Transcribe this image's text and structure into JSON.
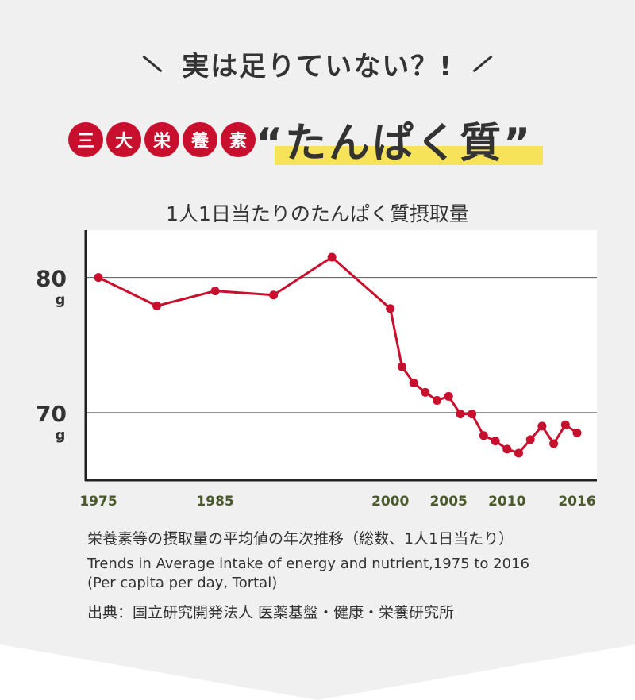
{
  "headline": "実は足りていない？!",
  "badges": [
    "三",
    "大",
    "栄",
    "養",
    "素"
  ],
  "protein_title": "“たんぱく質”",
  "colors": {
    "accent": "#c8102e",
    "highlight": "#f7e35a",
    "tick_text": "#4a5a2a"
  },
  "chart_data": {
    "type": "line",
    "title": "1人1日当たりのたんぱく質摂取量",
    "x": [
      1975,
      1980,
      1985,
      1990,
      1995,
      2000,
      2001,
      2002,
      2003,
      2004,
      2005,
      2006,
      2007,
      2008,
      2009,
      2010,
      2011,
      2012,
      2013,
      2014,
      2015,
      2016
    ],
    "values": [
      80.0,
      77.9,
      79.0,
      78.7,
      81.5,
      77.7,
      73.4,
      72.2,
      71.5,
      70.9,
      71.2,
      69.9,
      69.9,
      68.3,
      67.9,
      67.3,
      67.0,
      68.0,
      69.0,
      67.7,
      69.1,
      68.5
    ],
    "x_tick_labels": [
      "1975",
      "1985",
      "2000",
      "2005",
      "2010",
      "2016"
    ],
    "y_tick_labels": [
      {
        "value": 80,
        "label": "80",
        "unit": "g"
      },
      {
        "value": 70,
        "label": "70",
        "unit": "g"
      }
    ],
    "ylim": [
      65,
      83.5
    ],
    "grid": true,
    "line_color": "#c8102e"
  },
  "captions": {
    "ja": "栄養素等の摂取量の平均値の年次推移（総数、1人1日当たり）",
    "en_line1": "Trends in Average intake of energy and nutrient,1975 to 2016",
    "en_line2": "(Per capita per day, Tortal)",
    "source": "出典：国立研究開発法人 医薬基盤・健康・栄養研究所"
  }
}
